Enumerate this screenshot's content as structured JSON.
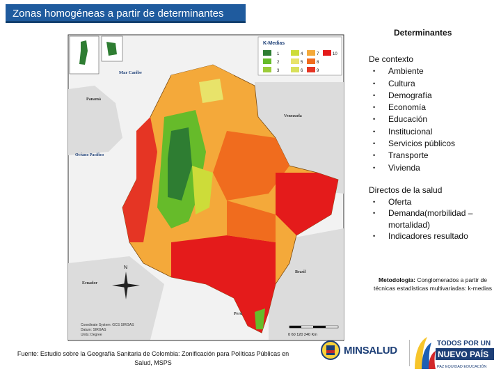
{
  "slide": {
    "title": "Zonas homogéneas a partir de determinantes"
  },
  "map": {
    "legend_title": "K-Medias",
    "legend_numbers": [
      "1",
      "4",
      "7",
      "10",
      "2",
      "5",
      "8",
      "3",
      "6",
      "9"
    ],
    "legend_colors": {
      "c1": "#2e7d32",
      "c2": "#66bb2a",
      "c3": "#9ccc3a",
      "c4": "#cddc39",
      "c5": "#e8e36a",
      "c6": "#d9e05a",
      "c7": "#f4a93a",
      "c8": "#f06c1e",
      "c9": "#e53524",
      "c10": "#e41b1b"
    },
    "labels": {
      "mar_caribe": "Mar Caribe",
      "panama": "Panamá",
      "venezuela": "Venezuela",
      "oceano_pacifico": "Océano Pacífico",
      "ecuador": "Ecuador",
      "brasil": "Brasil",
      "peru": "Perú",
      "north": "N",
      "coord_system": "Coordinate System: GCS SIRGAS",
      "datum": "Datum: SIRGAS",
      "units": "Units: Degree",
      "scale": "0  60 120      240 Km"
    }
  },
  "right": {
    "heading": "Determinantes",
    "context_title": "De contexto",
    "context_items": [
      "Ambiente",
      "Cultura",
      "Demografía",
      "Economía",
      "Educación",
      "Institucional",
      "Servicios públicos",
      "Transporte",
      "Vivienda"
    ],
    "health_title": "Directos de la salud",
    "health_items": [
      "Oferta",
      "Demanda(morbilidad – mortalidad)",
      "Indicadores resultado"
    ],
    "methodology_label": "Metodología:",
    "methodology_text": "Conglomerados a partir de técnicas estadísticas multivariadas: k-medias",
    "bullet": "•"
  },
  "footer": {
    "source": "Fuente: Estudio sobre la Geografía Sanitaria de Colombia: Zonificación para Políticas Públicas en Salud, MSPS",
    "logo_minsalud": "MINSALUD",
    "logo_tpnp_line1": "TODOS POR UN",
    "logo_tpnp_line2": "NUEVO PAÍS",
    "logo_tpnp_line3": "PAZ  EQUIDAD  EDUCACIÓN"
  }
}
